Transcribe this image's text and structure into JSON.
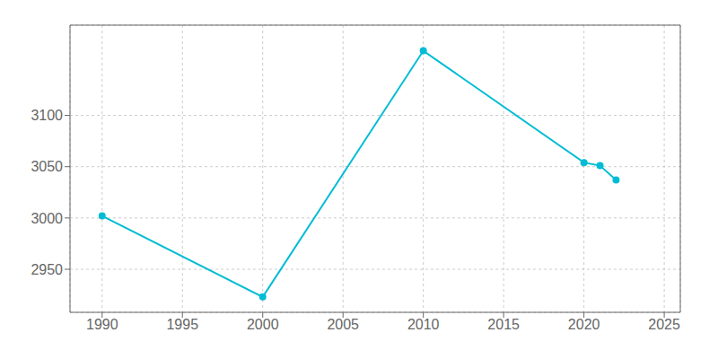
{
  "chart_data": {
    "type": "line",
    "x": [
      1990,
      2000,
      2010,
      2020,
      2021,
      2022
    ],
    "values": [
      3002,
      2923,
      3163,
      3054,
      3051,
      3037
    ],
    "color": "#00bcd4",
    "marker": "circle",
    "xlim": [
      1988,
      2026
    ],
    "ylim": [
      2908,
      3188
    ],
    "xticks": [
      1990,
      1995,
      2000,
      2005,
      2010,
      2015,
      2020,
      2025
    ],
    "yticks": [
      2950,
      3000,
      3050,
      3100
    ],
    "grid": true
  }
}
